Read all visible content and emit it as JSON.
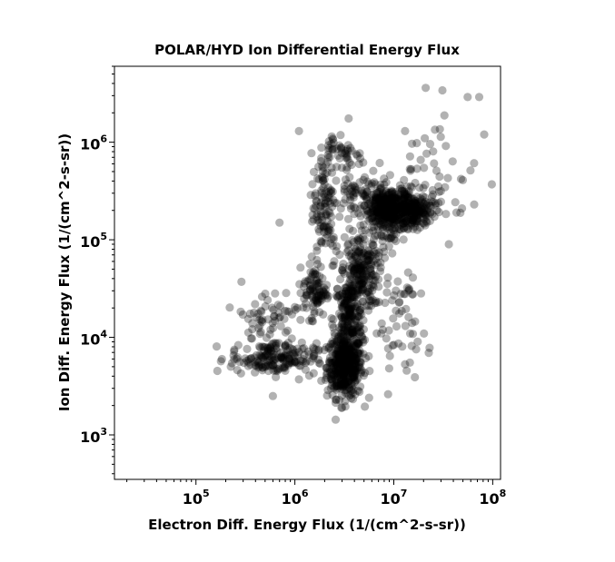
{
  "chart_data": {
    "type": "scatter",
    "title": "POLAR/HYD  Ion Differential Energy Flux",
    "xlabel": "Electron Diff. Energy Flux (1/(cm^2-s-sr))",
    "ylabel": "Ion Diff. Energy Flux (1/(cm^2-s-sr))",
    "xscale": "log",
    "yscale": "log",
    "xlim": [
      15000,
      120000000
    ],
    "ylim": [
      350,
      6000000
    ],
    "x_ticks": [
      {
        "value": 100000,
        "base": "10",
        "exp": "5"
      },
      {
        "value": 1000000,
        "base": "10",
        "exp": "6"
      },
      {
        "value": 10000000,
        "base": "10",
        "exp": "7"
      },
      {
        "value": 100000000,
        "base": "10",
        "exp": "8"
      }
    ],
    "y_ticks": [
      {
        "value": 1000,
        "base": "10",
        "exp": "3"
      },
      {
        "value": 10000,
        "base": "10",
        "exp": "4"
      },
      {
        "value": 100000,
        "base": "10",
        "exp": "5"
      },
      {
        "value": 1000000,
        "base": "10",
        "exp": "6"
      }
    ],
    "grid": false,
    "marker_color": "#000000",
    "marker_alpha": 0.3,
    "clusters": [
      {
        "x": 3200000,
        "y": 5000,
        "sx": 0.09,
        "sy": 0.16,
        "n": 420
      },
      {
        "x": 3600000,
        "y": 15000,
        "sx": 0.08,
        "sy": 0.22,
        "n": 220
      },
      {
        "x": 4500000,
        "y": 50000,
        "sx": 0.09,
        "sy": 0.17,
        "n": 170
      },
      {
        "x": 9000000,
        "y": 200000,
        "sx": 0.13,
        "sy": 0.12,
        "n": 460
      },
      {
        "x": 17000000,
        "y": 200000,
        "sx": 0.1,
        "sy": 0.09,
        "n": 150
      },
      {
        "x": 600000,
        "y": 6000,
        "sx": 0.22,
        "sy": 0.08,
        "n": 180
      },
      {
        "x": 1600000,
        "y": 30000,
        "sx": 0.06,
        "sy": 0.13,
        "n": 90
      },
      {
        "x": 2000000,
        "y": 200000,
        "sx": 0.07,
        "sy": 0.3,
        "n": 110
      },
      {
        "x": 2800000,
        "y": 800000,
        "sx": 0.12,
        "sy": 0.1,
        "n": 50
      },
      {
        "x": 4000000,
        "y": 350000,
        "sx": 0.08,
        "sy": 0.16,
        "n": 50
      },
      {
        "x": 500000,
        "y": 15000,
        "sx": 0.17,
        "sy": 0.18,
        "n": 70
      },
      {
        "x": 12000000,
        "y": 12000,
        "sx": 0.13,
        "sy": 0.22,
        "n": 40
      },
      {
        "x": 25000000,
        "y": 500000,
        "sx": 0.22,
        "sy": 0.28,
        "n": 45
      },
      {
        "x": 6000000,
        "y": 40000,
        "sx": 0.2,
        "sy": 0.25,
        "n": 60
      }
    ],
    "outliers": [
      {
        "x": 21000000,
        "y": 3600000
      },
      {
        "x": 31000000,
        "y": 3400000
      },
      {
        "x": 73000000,
        "y": 2900000
      },
      {
        "x": 82000000,
        "y": 1200000
      },
      {
        "x": 98000000,
        "y": 370000
      },
      {
        "x": 3500000,
        "y": 1750000
      },
      {
        "x": 700000,
        "y": 150000
      },
      {
        "x": 13000000,
        "y": 1300000
      },
      {
        "x": 65000000,
        "y": 230000
      },
      {
        "x": 49000000,
        "y": 210000
      },
      {
        "x": 36000000,
        "y": 90000
      },
      {
        "x": 23000000,
        "y": 7800
      },
      {
        "x": 13000000,
        "y": 5300
      },
      {
        "x": 600000,
        "y": 2500
      },
      {
        "x": 1100000,
        "y": 3700
      }
    ]
  }
}
